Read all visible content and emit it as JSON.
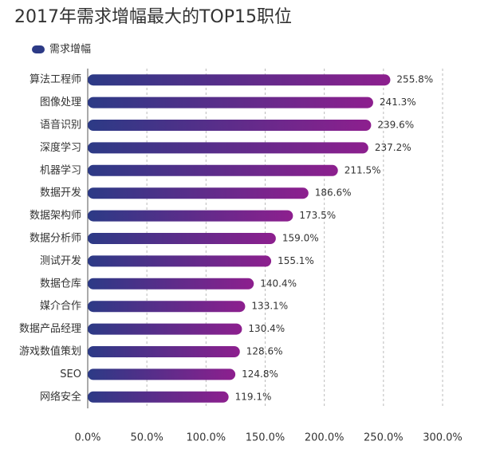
{
  "chart_data": {
    "type": "barh",
    "title": "2017年需求增幅最大的TOP15职位",
    "series": [
      {
        "name": "需求增幅",
        "gradient": [
          "#2c3a86",
          "#8d1f8e"
        ],
        "values": [
          255.8,
          241.3,
          239.6,
          237.2,
          211.5,
          186.6,
          173.5,
          159.0,
          155.1,
          140.4,
          133.1,
          130.4,
          128.6,
          124.8,
          119.1
        ],
        "value_labels": [
          "255.8%",
          "241.3%",
          "239.6%",
          "237.2%",
          "211.5%",
          "186.6%",
          "173.5%",
          "159.0%",
          "155.1%",
          "140.4%",
          "133.1%",
          "130.4%",
          "128.6%",
          "124.8%",
          "119.1%"
        ]
      }
    ],
    "categories": [
      "算法工程师",
      "图像处理",
      "语音识别",
      "深度学习",
      "机器学习",
      "数据开发",
      "数据架构师",
      "数据分析师",
      "测试开发",
      "数据仓库",
      "媒介合作",
      "数据产品经理",
      "游戏数值策划",
      "SEO",
      "网络安全"
    ],
    "xlim": [
      0,
      300
    ],
    "xticks": [
      {
        "value": 0,
        "label": "0.0%"
      },
      {
        "value": 50,
        "label": "50.0%"
      },
      {
        "value": 100,
        "label": "100.0%"
      },
      {
        "value": 150,
        "label": "150.0%"
      },
      {
        "value": 200,
        "label": "200.0%"
      },
      {
        "value": 250,
        "label": "250.0%"
      },
      {
        "value": 300,
        "label": "300.0%"
      }
    ],
    "grid": true
  }
}
